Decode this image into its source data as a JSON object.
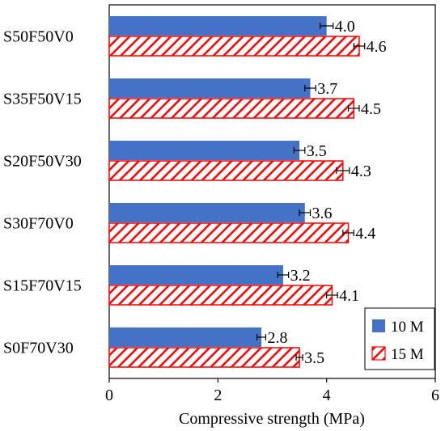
{
  "chart_data": {
    "type": "bar",
    "orientation": "horizontal",
    "categories": [
      "S50F50V0",
      "S35F50V15",
      "S20F50V30",
      "S30F70V0",
      "S15F70V15",
      "S0F70V30"
    ],
    "series": [
      {
        "name": "10 M",
        "values": [
          4.0,
          3.7,
          3.5,
          3.6,
          3.2,
          2.8
        ],
        "errors": [
          0.12,
          0.1,
          0.1,
          0.1,
          0.1,
          0.08
        ],
        "labels": [
          "4.0",
          "3.7",
          "3.5",
          "3.6",
          "3.2",
          "2.8"
        ],
        "color": "#4472C4",
        "pattern": "solid"
      },
      {
        "name": "15 M",
        "values": [
          4.6,
          4.5,
          4.3,
          4.4,
          4.1,
          3.5
        ],
        "errors": [
          0.1,
          0.1,
          0.12,
          0.1,
          0.1,
          0.06
        ],
        "labels": [
          "4.6",
          "4.5",
          "4.3",
          "4.4",
          "4.1",
          "3.5"
        ],
        "color": "#FF0000",
        "pattern": "diagonal-hatch"
      }
    ],
    "xlabel": "Compressive strength (MPa)",
    "ylabel": "",
    "xlim": [
      0,
      6
    ],
    "xticks": [
      "0",
      "2",
      "4",
      "6"
    ],
    "grid": false,
    "legend_position": "bottom-right"
  }
}
